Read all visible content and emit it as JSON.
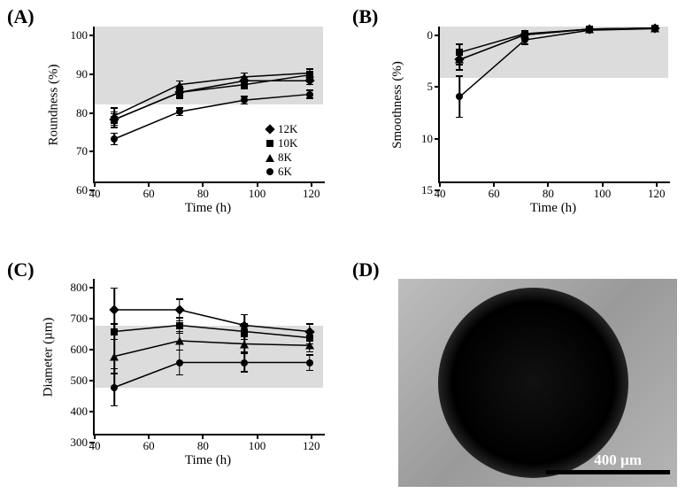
{
  "labels": {
    "A": "(A)",
    "B": "(B)",
    "C": "(C)",
    "D": "(D)"
  },
  "legend": {
    "items": [
      {
        "label": "12K",
        "marker": "diamond"
      },
      {
        "label": "10K",
        "marker": "square"
      },
      {
        "label": "8K",
        "marker": "triangle"
      },
      {
        "label": "6K",
        "marker": "circle"
      }
    ]
  },
  "chartA": {
    "type": "line",
    "ylabel": "Roundness (%)",
    "xlabel": "Time (h)",
    "xlim": [
      40,
      125
    ],
    "ylim": [
      60,
      100
    ],
    "xticks": [
      40,
      60,
      80,
      100,
      120
    ],
    "yticks": [
      60,
      70,
      80,
      90,
      100
    ],
    "shade_y": [
      80,
      100
    ],
    "series": {
      "12K": {
        "marker": "diamond",
        "x": [
          48,
          72,
          96,
          120
        ],
        "y": [
          76,
          83,
          86,
          86
        ],
        "err": [
          2,
          1.5,
          1,
          1
        ]
      },
      "10K": {
        "marker": "square",
        "x": [
          48,
          72,
          96,
          120
        ],
        "y": [
          76,
          83,
          85,
          87.5
        ],
        "err": [
          1.5,
          1,
          1,
          1
        ]
      },
      "8K": {
        "marker": "triangle",
        "x": [
          48,
          72,
          96,
          120
        ],
        "y": [
          77,
          85,
          87,
          88
        ],
        "err": [
          2,
          1,
          1,
          1
        ]
      },
      "6K": {
        "marker": "circle",
        "x": [
          48,
          72,
          96,
          120
        ],
        "y": [
          71,
          78,
          81,
          82.5
        ],
        "err": [
          1.5,
          1,
          1,
          1
        ]
      }
    }
  },
  "chartB": {
    "type": "line",
    "ylabel": "Smoothness (%)",
    "xlabel": "Time (h)",
    "xlim": [
      40,
      125
    ],
    "ylim": [
      15,
      0
    ],
    "xticks": [
      40,
      60,
      80,
      100,
      120
    ],
    "yticks": [
      0,
      5,
      10,
      15
    ],
    "shade_y": [
      0,
      5
    ],
    "series": {
      "12K": {
        "marker": "diamond",
        "x": [
          48,
          72,
          96,
          120
        ],
        "y": [
          3.2,
          0.8,
          0.25,
          0.15
        ],
        "err": [
          0.5,
          0.3,
          0.2,
          0.1
        ]
      },
      "10K": {
        "marker": "square",
        "x": [
          48,
          72,
          96,
          120
        ],
        "y": [
          2.5,
          0.7,
          0.25,
          0.15
        ],
        "err": [
          0.8,
          0.3,
          0.2,
          0.1
        ]
      },
      "8K": {
        "marker": "triangle",
        "x": [
          48,
          72,
          96,
          120
        ],
        "y": [
          3.2,
          0.8,
          0.25,
          0.15
        ],
        "err": [
          1.0,
          0.3,
          0.2,
          0.1
        ]
      },
      "6K": {
        "marker": "circle",
        "x": [
          48,
          72,
          96,
          120
        ],
        "y": [
          6.8,
          1.3,
          0.35,
          0.2
        ],
        "err": [
          2.0,
          0.4,
          0.2,
          0.1
        ]
      }
    }
  },
  "chartC": {
    "type": "line",
    "ylabel": "Diameter (µm)",
    "xlabel": "Time (h)",
    "xlim": [
      40,
      125
    ],
    "ylim": [
      300,
      800
    ],
    "xticks": [
      40,
      60,
      80,
      100,
      120
    ],
    "yticks": [
      300,
      400,
      500,
      600,
      700,
      800
    ],
    "shade_y": [
      450,
      650
    ],
    "series": {
      "12K": {
        "marker": "diamond",
        "x": [
          48,
          72,
          96,
          120
        ],
        "y": [
          700,
          700,
          650,
          630
        ],
        "err": [
          70,
          35,
          35,
          25
        ]
      },
      "10K": {
        "marker": "square",
        "x": [
          48,
          72,
          96,
          120
        ],
        "y": [
          630,
          650,
          630,
          610
        ],
        "err": [
          25,
          25,
          25,
          20
        ]
      },
      "8K": {
        "marker": "triangle",
        "x": [
          48,
          72,
          96,
          120
        ],
        "y": [
          550,
          600,
          590,
          585
        ],
        "err": [
          55,
          30,
          25,
          20
        ]
      },
      "6K": {
        "marker": "circle",
        "x": [
          48,
          72,
          96,
          120
        ],
        "y": [
          450,
          530,
          530,
          530
        ],
        "err": [
          60,
          40,
          30,
          25
        ]
      }
    }
  },
  "panelD": {
    "scalebar_text": "400 µm"
  },
  "colors": {
    "shade": "#dcdcdc",
    "line": "#000000",
    "background": "#ffffff"
  }
}
